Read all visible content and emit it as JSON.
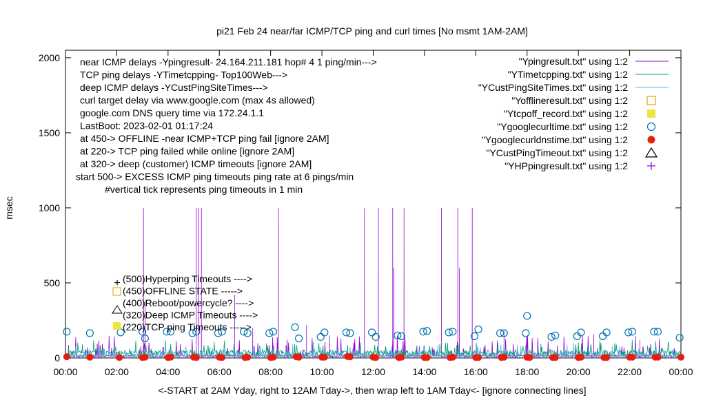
{
  "chart_data": {
    "type": "line",
    "title": "pi21 Feb 24  near/far ICMP/TCP ping and curl times [No msmt 1AM-2AM]",
    "ylabel": "msec",
    "xlabel": "<-START at 2AM Yday, right to 12AM Tday->, then wrap left to 1AM Tday<- [ignore connecting lines]",
    "xlim": [
      0,
      24
    ],
    "ylim": [
      0,
      2050
    ],
    "x_ticks": [
      "00:00",
      "02:00",
      "04:00",
      "06:00",
      "08:00",
      "10:00",
      "12:00",
      "14:00",
      "16:00",
      "18:00",
      "20:00",
      "22:00",
      "00:00"
    ],
    "y_ticks": [
      0,
      500,
      1000,
      1500,
      2000
    ],
    "legend_position": "top-right",
    "notes": [
      "near ICMP delays -Ypingresult- 24.164.211.181 hop# 4 1 ping/min--->",
      "TCP ping delays -YTimetcpping- Top100Web--->",
      "deep ICMP delays -YCustPingSiteTimes--->",
      "curl target delay via www.google.com (max 4s allowed)",
      "google.com DNS query time via 172.24.1.1",
      "LastBoot: 2023-02-01 01:17:24",
      "at 450->  OFFLINE -near ICMP+TCP ping fail [ignore 2AM]",
      "at 220-> TCP ping failed while online [ignore 2AM]",
      "at 320-> deep (customer) ICMP timeouts [ignore 2AM]",
      "start 500->  EXCESS ICMP ping timeouts  ping rate at 6 pings/min",
      "#vertical tick represents ping timeouts in 1 min"
    ],
    "markers_text": [
      "(500)Hyperping Timeouts ---->",
      "(450)OFFLINE STATE ----->",
      "(400)Reboot/powercycle? ---->",
      "(320)Deep ICMP Timeouts ---->",
      "(220)TCP ping Timeouts ----->"
    ],
    "series": [
      {
        "name": "\"Ypingresult.txt\" using 1:2",
        "style": "line",
        "color": "#9400d3",
        "spikes": [
          [
            3.05,
            1000
          ],
          [
            3.1,
            380
          ],
          [
            5.1,
            1000
          ],
          [
            5.18,
            1000
          ],
          [
            5.3,
            1000
          ],
          [
            6.6,
            420
          ],
          [
            8.3,
            1000
          ],
          [
            11.65,
            1000
          ],
          [
            12.2,
            1000
          ],
          [
            12.75,
            1000
          ],
          [
            12.8,
            600
          ],
          [
            13.2,
            1000
          ],
          [
            14.65,
            1000
          ],
          [
            15.3,
            1000
          ],
          [
            15.35,
            600
          ],
          [
            15.85,
            1000
          ],
          [
            7.3,
            200
          ],
          [
            9.4,
            220
          ],
          [
            10.3,
            150
          ],
          [
            17.1,
            180
          ],
          [
            20.6,
            160
          ],
          [
            22.4,
            120
          ]
        ]
      },
      {
        "name": "\"YTimetcpping.txt\" using 1:2",
        "style": "line",
        "color": "#009e73",
        "baseline": 40
      },
      {
        "name": "\"YCustPingSiteTimes.txt\" using 1:2",
        "style": "line",
        "color": "#56b4e9",
        "baseline": 20
      },
      {
        "name": "\"Yofflineresult.txt\" using 1:2",
        "style": "open-square",
        "color": "#e69f00",
        "points": []
      },
      {
        "name": "\"Ytcpoff_record.txt\" using 1:2",
        "style": "filled-square",
        "color": "#f0e442",
        "points": []
      },
      {
        "name": "\"Ygooglecurltime.txt\" using 1:2",
        "style": "open-circle",
        "color": "#0072b2",
        "points": [
          [
            0.05,
            175
          ],
          [
            0.95,
            165
          ],
          [
            2.15,
            170
          ],
          [
            3.0,
            175
          ],
          [
            3.1,
            130
          ],
          [
            3.95,
            175
          ],
          [
            4.1,
            175
          ],
          [
            4.95,
            165
          ],
          [
            5.1,
            175
          ],
          [
            5.95,
            165
          ],
          [
            6.1,
            175
          ],
          [
            6.95,
            175
          ],
          [
            7.1,
            165
          ],
          [
            7.95,
            165
          ],
          [
            8.1,
            175
          ],
          [
            8.95,
            205
          ],
          [
            9.1,
            130
          ],
          [
            9.95,
            140
          ],
          [
            10.1,
            170
          ],
          [
            10.95,
            170
          ],
          [
            11.1,
            165
          ],
          [
            11.95,
            170
          ],
          [
            12.1,
            140
          ],
          [
            12.95,
            150
          ],
          [
            13.1,
            145
          ],
          [
            13.95,
            175
          ],
          [
            14.1,
            180
          ],
          [
            14.95,
            170
          ],
          [
            15.1,
            175
          ],
          [
            15.95,
            145
          ],
          [
            16.1,
            190
          ],
          [
            16.95,
            165
          ],
          [
            17.1,
            165
          ],
          [
            17.95,
            165
          ],
          [
            18.0,
            280
          ],
          [
            18.95,
            140
          ],
          [
            19.1,
            150
          ],
          [
            19.95,
            145
          ],
          [
            20.1,
            170
          ],
          [
            20.95,
            145
          ],
          [
            21.1,
            170
          ],
          [
            21.95,
            170
          ],
          [
            22.1,
            175
          ],
          [
            22.95,
            175
          ],
          [
            23.1,
            175
          ],
          [
            23.95,
            135
          ]
        ]
      },
      {
        "name": "\"Ygooglecurldnstime.txt\" using 1:2",
        "style": "filled-circle",
        "color": "#e51e10",
        "points": [
          [
            0.05,
            8
          ],
          [
            0.95,
            5
          ],
          [
            2.1,
            3
          ],
          [
            3.0,
            3
          ],
          [
            3.1,
            5
          ],
          [
            4.0,
            3
          ],
          [
            4.1,
            5
          ],
          [
            5.0,
            5
          ],
          [
            5.1,
            3
          ],
          [
            6.0,
            5
          ],
          [
            6.1,
            3
          ],
          [
            7.0,
            3
          ],
          [
            7.1,
            5
          ],
          [
            8.0,
            3
          ],
          [
            8.1,
            5
          ],
          [
            9.0,
            8
          ],
          [
            9.1,
            5
          ],
          [
            10.0,
            5
          ],
          [
            10.1,
            5
          ],
          [
            11.0,
            10
          ],
          [
            11.1,
            8
          ],
          [
            12.0,
            5
          ],
          [
            12.1,
            3
          ],
          [
            13.0,
            3
          ],
          [
            13.1,
            5
          ],
          [
            14.0,
            3
          ],
          [
            14.1,
            3
          ],
          [
            15.0,
            3
          ],
          [
            15.1,
            5
          ],
          [
            16.0,
            3
          ],
          [
            16.1,
            3
          ],
          [
            17.0,
            3
          ],
          [
            17.1,
            5
          ],
          [
            18.0,
            5
          ],
          [
            18.1,
            3
          ],
          [
            19.0,
            3
          ],
          [
            19.1,
            3
          ],
          [
            20.0,
            3
          ],
          [
            20.1,
            5
          ],
          [
            21.0,
            3
          ],
          [
            21.1,
            3
          ],
          [
            22.0,
            5
          ],
          [
            22.1,
            5
          ],
          [
            23.0,
            5
          ],
          [
            23.1,
            5
          ],
          [
            24.0,
            5
          ]
        ]
      },
      {
        "name": "\"YCustPingTimeout.txt\" using 1:2",
        "style": "open-triangle",
        "color": "#000000",
        "points": []
      },
      {
        "name": "\"YHPpingresult.txt\" using 1:2",
        "style": "plus",
        "color": "#9400d3",
        "points": []
      }
    ]
  }
}
